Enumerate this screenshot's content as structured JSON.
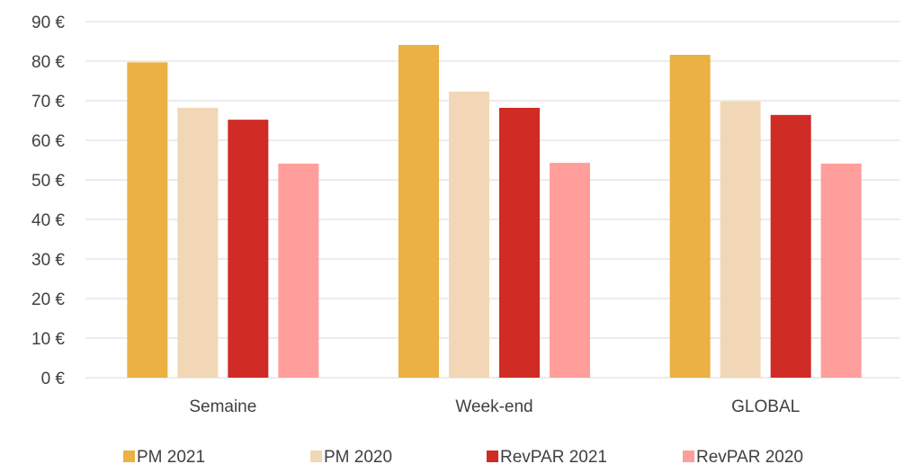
{
  "chart_data": {
    "type": "bar",
    "categories": [
      "Semaine",
      "Week-end",
      "GLOBAL"
    ],
    "series": [
      {
        "name": "PM 2021",
        "color": "#ebb143",
        "values": [
          79.7,
          84.1,
          81.6
        ]
      },
      {
        "name": "PM 2020",
        "color": "#f2d7b6",
        "values": [
          68.2,
          72.3,
          69.8
        ]
      },
      {
        "name": "RevPAR 2021",
        "color": "#d12b25",
        "values": [
          65.2,
          68.2,
          66.4
        ]
      },
      {
        "name": "RevPAR 2020",
        "color": "#ff9e9b",
        "values": [
          54.1,
          54.3,
          54.1
        ]
      }
    ],
    "ylim": [
      0,
      90
    ],
    "yticks": [
      {
        "value": 0,
        "label": "0 €"
      },
      {
        "value": 10,
        "label": "10 €"
      },
      {
        "value": 20,
        "label": "20 €"
      },
      {
        "value": 30,
        "label": "30 €"
      },
      {
        "value": 40,
        "label": "40 €"
      },
      {
        "value": 50,
        "label": "50 €"
      },
      {
        "value": 60,
        "label": "60 €"
      },
      {
        "value": 70,
        "label": "70 €"
      },
      {
        "value": 80,
        "label": "80 €"
      },
      {
        "value": 90,
        "label": "90 €"
      }
    ],
    "grid": true,
    "legend": "bottom"
  }
}
